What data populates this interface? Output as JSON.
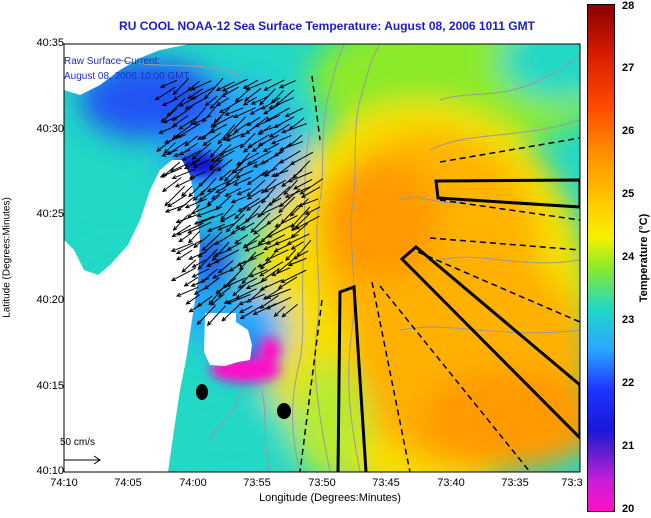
{
  "map": {
    "title": "RU COOL  NOAA-12  Sea Surface Temperature:  August 08, 2006 1011 GMT",
    "current_label_1": "Raw Surface Current:",
    "current_label_2": "August 08, 2006 10:00 GMT",
    "scale_label": "50 cm/s",
    "x_axis_label": "Longitude (Degrees:Minutes)",
    "y_axis_label": "Latitude (Degrees:Minutes)",
    "x_ticks": [
      "74:10",
      "74:05",
      "74:00",
      "73:55",
      "73:50",
      "73:45",
      "73:40",
      "73:35",
      "73:3"
    ],
    "y_ticks": [
      "40:35",
      "40:30",
      "40:25",
      "40:20",
      "40:15",
      "40:10"
    ]
  },
  "colorbar": {
    "label": "Temperature (°C)",
    "ticks": [
      "28",
      "27",
      "26",
      "25",
      "24",
      "23",
      "22",
      "21",
      "20"
    ],
    "min": 20,
    "max": 28,
    "colors": [
      "#ff10c8",
      "#c81ed8",
      "#1e34ff",
      "#28a8ff",
      "#22d8c6",
      "#8aea2a",
      "#f5f000",
      "#ffcf00",
      "#ff9a00",
      "#ff4a00",
      "#d21a00",
      "#8a0000"
    ]
  }
}
